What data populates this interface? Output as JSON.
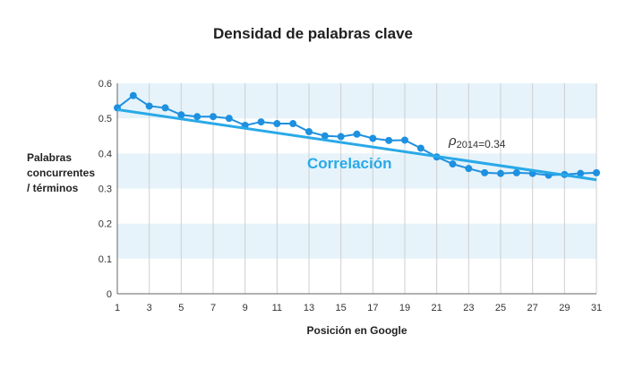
{
  "chart_data": {
    "type": "line",
    "title": "Densidad de palabras clave",
    "xlabel": "Posición en Google",
    "ylabel": "Palabras\nconcurrentes\n/ términos",
    "xlim": [
      1,
      31
    ],
    "ylim": [
      0,
      0.6
    ],
    "x_ticks": [
      "1",
      "3",
      "5",
      "7",
      "9",
      "11",
      "13",
      "15",
      "17",
      "19",
      "21",
      "23",
      "25",
      "27",
      "29",
      "31"
    ],
    "y_ticks": [
      "0",
      "0.1",
      "0.2",
      "0.3",
      "0.4",
      "0.5",
      "0.6"
    ],
    "grid": "vertical lines at odd positions, alternating horizontal light-blue bands",
    "series": [
      {
        "x": [
          1,
          2,
          3,
          4,
          5,
          6,
          7,
          8,
          9,
          10,
          11,
          12,
          13,
          14,
          15,
          16,
          17,
          18,
          19,
          20,
          21,
          22,
          23,
          24,
          25,
          26,
          27,
          28,
          29,
          30,
          31
        ],
        "values": [
          0.53,
          0.565,
          0.535,
          0.53,
          0.51,
          0.505,
          0.505,
          0.5,
          0.48,
          0.49,
          0.485,
          0.485,
          0.462,
          0.45,
          0.448,
          0.455,
          0.443,
          0.437,
          0.438,
          0.415,
          0.39,
          0.37,
          0.357,
          0.345,
          0.343,
          0.345,
          0.343,
          0.338,
          0.34,
          0.343,
          0.345
        ],
        "color": "#1e90e0"
      }
    ],
    "trendline": {
      "label": "Correlación",
      "x": [
        1,
        31
      ],
      "values": [
        0.525,
        0.325
      ],
      "color": "#29a9e8"
    },
    "annotation": {
      "symbol": "ρ",
      "subscript": "2014",
      "value_text": "=0.34"
    },
    "colors": {
      "band": "#e6f3fa",
      "vgrid": "#cfcfcf",
      "axis": "#666666",
      "point": "#1e90e0",
      "trend": "#29a9e8",
      "label": "#29a9e8"
    }
  }
}
